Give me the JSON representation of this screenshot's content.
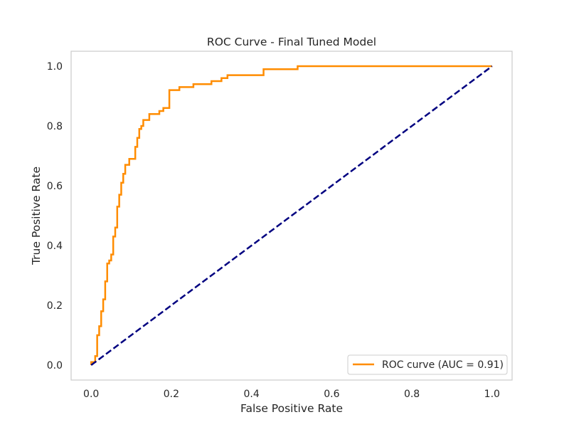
{
  "chart_data": {
    "type": "line",
    "title": "ROC Curve - Final Tuned Model",
    "xlabel": "False Positive Rate",
    "ylabel": "True Positive Rate",
    "xlim": [
      -0.05,
      1.05
    ],
    "ylim": [
      -0.05,
      1.05
    ],
    "xticks": [
      0.0,
      0.2,
      0.4,
      0.6,
      0.8,
      1.0
    ],
    "yticks": [
      0.0,
      0.2,
      0.4,
      0.6,
      0.8,
      1.0
    ],
    "xtick_labels": [
      "0.0",
      "0.2",
      "0.4",
      "0.6",
      "0.8",
      "1.0"
    ],
    "ytick_labels": [
      "0.0",
      "0.2",
      "0.4",
      "0.6",
      "0.8",
      "1.0"
    ],
    "grid": false,
    "legend_position": "lower-right",
    "series": [
      {
        "name": "ROC curve (AUC = 0.91)",
        "color": "#ff8c00",
        "style": "solid",
        "x": [
          0.0,
          0.0,
          0.01,
          0.01,
          0.015,
          0.015,
          0.02,
          0.02,
          0.025,
          0.025,
          0.03,
          0.03,
          0.035,
          0.035,
          0.04,
          0.04,
          0.045,
          0.045,
          0.05,
          0.05,
          0.055,
          0.055,
          0.06,
          0.06,
          0.065,
          0.065,
          0.07,
          0.07,
          0.075,
          0.075,
          0.08,
          0.08,
          0.085,
          0.085,
          0.095,
          0.095,
          0.11,
          0.11,
          0.115,
          0.115,
          0.12,
          0.12,
          0.125,
          0.125,
          0.13,
          0.13,
          0.145,
          0.145,
          0.17,
          0.17,
          0.18,
          0.18,
          0.195,
          0.195,
          0.22,
          0.22,
          0.255,
          0.255,
          0.3,
          0.3,
          0.325,
          0.325,
          0.34,
          0.34,
          0.43,
          0.43,
          0.515,
          0.515,
          1.0
        ],
        "y": [
          0.0,
          0.01,
          0.01,
          0.03,
          0.03,
          0.1,
          0.1,
          0.13,
          0.13,
          0.18,
          0.18,
          0.22,
          0.22,
          0.28,
          0.28,
          0.34,
          0.34,
          0.35,
          0.35,
          0.37,
          0.37,
          0.43,
          0.43,
          0.46,
          0.46,
          0.53,
          0.53,
          0.57,
          0.57,
          0.61,
          0.61,
          0.64,
          0.64,
          0.67,
          0.67,
          0.69,
          0.69,
          0.73,
          0.73,
          0.76,
          0.76,
          0.79,
          0.79,
          0.8,
          0.8,
          0.82,
          0.82,
          0.84,
          0.84,
          0.85,
          0.85,
          0.86,
          0.86,
          0.92,
          0.92,
          0.93,
          0.93,
          0.94,
          0.94,
          0.95,
          0.95,
          0.96,
          0.96,
          0.97,
          0.97,
          0.99,
          0.99,
          1.0,
          1.0
        ]
      },
      {
        "name": "",
        "color": "#000080",
        "style": "dashed",
        "x": [
          0.0,
          1.0
        ],
        "y": [
          0.0,
          1.0
        ]
      }
    ]
  },
  "colors": {
    "frame": "#cccccc",
    "text": "#262626",
    "legend_border": "#cccccc"
  }
}
